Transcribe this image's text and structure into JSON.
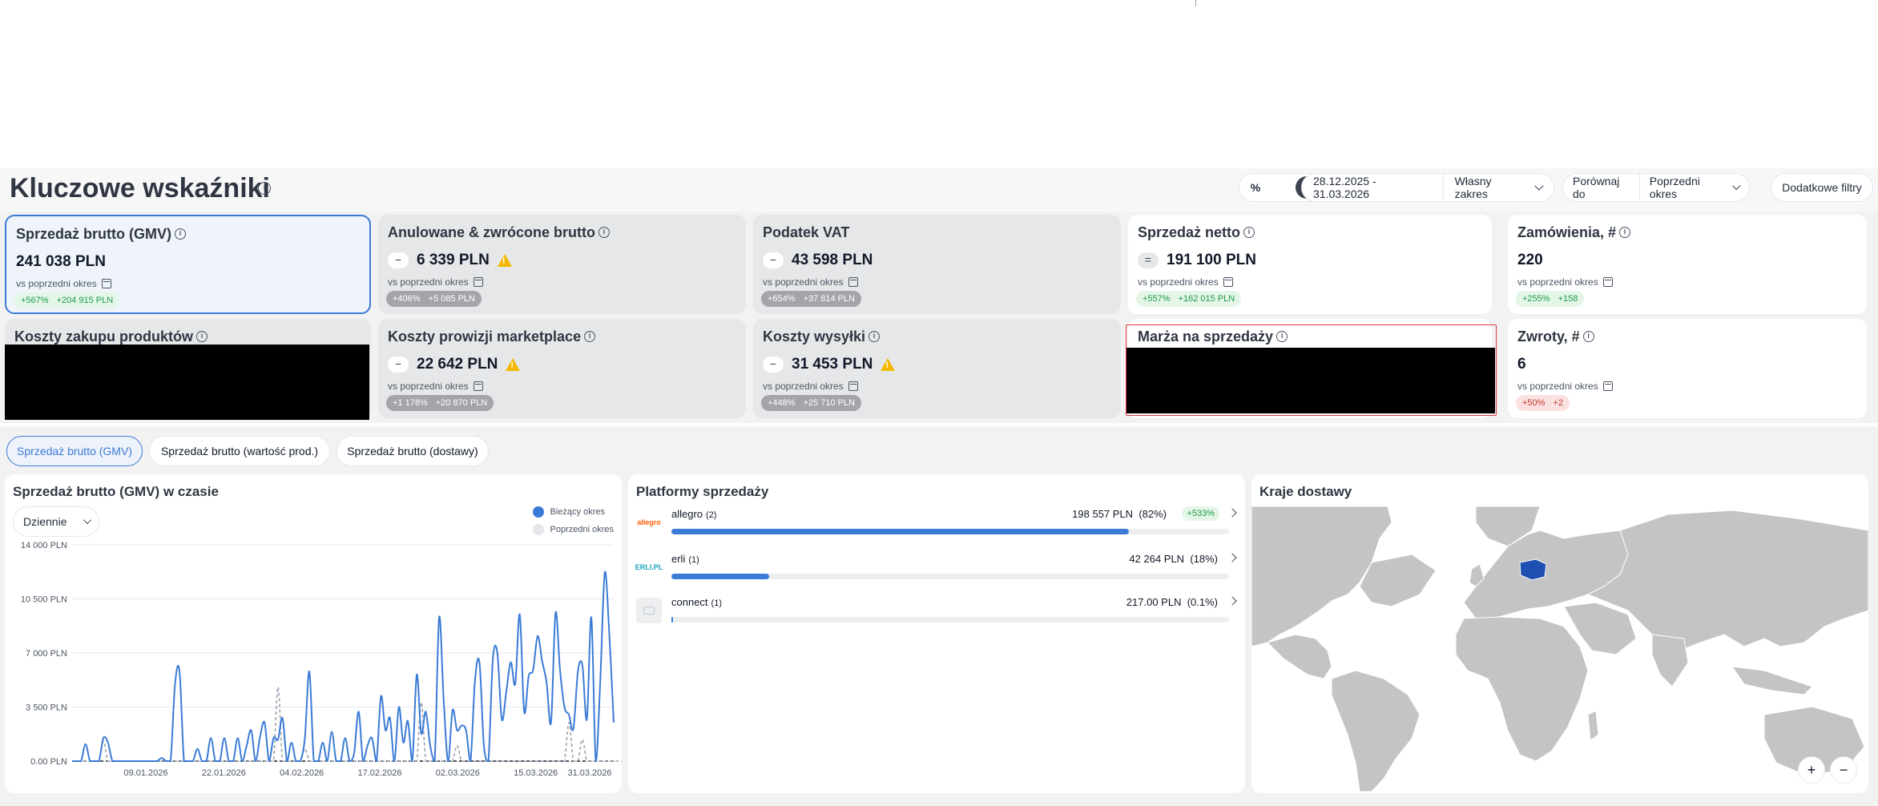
{
  "header": {
    "title": "Kluczowe wskaźniki",
    "toggle": {
      "percent": "%",
      "number": "#"
    },
    "date_range": "28.12.2025 - 31.03.2026",
    "range_type": "Własny zakres",
    "compare_label": "Porównaj do",
    "compare_value": "Poprzedni okres",
    "extra_filters": "Dodatkowe filtry"
  },
  "kpis": {
    "gmv": {
      "title": "Sprzedaż brutto (GMV)",
      "value": "241 038 PLN",
      "sub": "vs poprzedni okres",
      "pct": "+567%",
      "diff": "+204 915 PLN"
    },
    "cancelled": {
      "title": "Anulowane & zwrócone brutto",
      "sign": "−",
      "value": "6 339 PLN",
      "sub": "vs poprzedni okres",
      "pct": "+406%",
      "diff": "+5 085 PLN"
    },
    "vat": {
      "title": "Podatek VAT",
      "sign": "−",
      "value": "43 598 PLN",
      "sub": "vs poprzedni okres",
      "pct": "+654%",
      "diff": "+37 814 PLN"
    },
    "net": {
      "title": "Sprzedaż netto",
      "sign": "=",
      "value": "191 100 PLN",
      "sub": "vs poprzedni okres",
      "pct": "+557%",
      "diff": "+162 015 PLN"
    },
    "orders": {
      "title": "Zamówienia, #",
      "value": "220",
      "sub": "vs poprzedni okres",
      "pct": "+255%",
      "diff": "+158"
    },
    "purchase_cost": {
      "title": "Koszty zakupu produktów"
    },
    "commission": {
      "title": "Koszty prowizji marketplace",
      "sign": "−",
      "value": "22 642 PLN",
      "sub": "vs poprzedni okres",
      "pct": "+1 178%",
      "diff": "+20 870 PLN"
    },
    "shipping": {
      "title": "Koszty wysyłki",
      "sign": "−",
      "value": "31 453 PLN",
      "sub": "vs poprzedni okres",
      "pct": "+448%",
      "diff": "+25 710 PLN"
    },
    "margin": {
      "title": "Marża na sprzedaży"
    },
    "returns": {
      "title": "Zwroty, #",
      "value": "6",
      "sub": "vs poprzedni okres",
      "pct": "+50%",
      "diff": "+2"
    }
  },
  "tabs": [
    "Sprzedaż brutto (GMV)",
    "Sprzedaż brutto (wartość prod.)",
    "Sprzedaż brutto (dostawy)"
  ],
  "gmv_chart": {
    "title": "Sprzedaż brutto (GMV) w czasie",
    "granularity": "Dziennie",
    "legend_current": "Bieżący okres",
    "legend_previous": "Poprzedni okres",
    "colors": {
      "current": "#3b7bd6",
      "previous": "#9ca3af"
    }
  },
  "chart_data": {
    "type": "line",
    "title": "Sprzedaż brutto (GMV) w czasie",
    "xlabel": "",
    "ylabel": "",
    "ylim": [
      0,
      14000
    ],
    "y_ticks": [
      "14 000 PLN",
      "10 500 PLN",
      "7 000 PLN",
      "3 500 PLN",
      "0.00 PLN"
    ],
    "y_tick_values": [
      14000,
      10500,
      7000,
      3500,
      0
    ],
    "x_ticks": [
      "09.01.2026",
      "22.01.2026",
      "04.02.2026",
      "17.02.2026",
      "02.03.2026",
      "15.03.2026",
      "31.03.2026"
    ],
    "x_start": "2025-12-28",
    "series": [
      {
        "name": "Bieżący okres",
        "color": "#3b7bd6",
        "values": [
          0,
          0,
          0,
          1100,
          0,
          0,
          0,
          1500,
          1200,
          0,
          0,
          0,
          0,
          0,
          0,
          0,
          0,
          0,
          0,
          0,
          200,
          0,
          0,
          5000,
          5800,
          0,
          0,
          0,
          800,
          0,
          0,
          1500,
          0,
          0,
          1500,
          0,
          0,
          1500,
          0,
          1000,
          2000,
          0,
          1600,
          2500,
          0,
          1500,
          1400,
          2800,
          0,
          1200,
          0,
          0,
          1500,
          5800,
          0,
          0,
          1200,
          0,
          1900,
          0,
          0,
          1500,
          0,
          500,
          3200,
          0,
          1000,
          1500,
          0,
          4200,
          2000,
          2800,
          0,
          3500,
          1200,
          2600,
          0,
          5600,
          1800,
          3200,
          1000,
          0,
          9300,
          4000,
          0,
          3300,
          2000,
          2300,
          2000,
          0,
          5200,
          6400,
          1000,
          0,
          6600,
          7000,
          2700,
          4500,
          6400,
          5000,
          9500,
          3200,
          5500,
          5900,
          8100,
          6500,
          5100,
          2500,
          9600,
          5900,
          3500,
          3000,
          2100,
          5800,
          6200,
          2700,
          9300,
          0,
          5200,
          12200,
          8300,
          2500
        ]
      },
      {
        "name": "Poprzedni okres",
        "color": "#9ca3af",
        "values": [
          0,
          0,
          0,
          0,
          0,
          0,
          0,
          1300,
          0,
          0,
          0,
          0,
          0,
          0,
          0,
          0,
          0,
          0,
          0,
          0,
          0,
          0,
          0,
          0,
          0,
          0,
          0,
          0,
          0,
          0,
          0,
          0,
          0,
          0,
          0,
          0,
          0,
          0,
          0,
          0,
          0,
          0,
          0,
          0,
          0,
          0,
          4800,
          0,
          0,
          0,
          0,
          0,
          800,
          0,
          0,
          0,
          0,
          0,
          0,
          0,
          0,
          0,
          0,
          0,
          0,
          0,
          0,
          0,
          0,
          0,
          0,
          0,
          0,
          0,
          0,
          0,
          0,
          0,
          3800,
          0,
          0,
          0,
          0,
          0,
          0,
          0,
          1000,
          0,
          0,
          0,
          0,
          0,
          0,
          0,
          0,
          0,
          0,
          0,
          0,
          0,
          0,
          0,
          0,
          0,
          0,
          0,
          0,
          0,
          0,
          0,
          0,
          2500,
          0,
          0,
          1400,
          0,
          0,
          0,
          0,
          0,
          0,
          0,
          0,
          0,
          0
        ]
      }
    ]
  },
  "platforms": {
    "title": "Platformy sprzedaży",
    "items": [
      {
        "logo": "allegro",
        "name": "allegro",
        "count": "(2)",
        "value": "198 557 PLN",
        "share": "(82%)",
        "change": "+533%",
        "fill": 0.82
      },
      {
        "logo": "ERLI.PL",
        "name": "erli",
        "count": "(1)",
        "value": "42 264 PLN",
        "share": "(18%)",
        "change": "",
        "fill": 0.175
      },
      {
        "logo": "",
        "name": "connect",
        "count": "(1)",
        "value": "217.00 PLN",
        "share": "(0.1%)",
        "change": "",
        "fill": 0.002
      }
    ]
  },
  "delivery": {
    "title": "Kraje dostawy",
    "zoom_in": "+",
    "zoom_out": "−"
  }
}
